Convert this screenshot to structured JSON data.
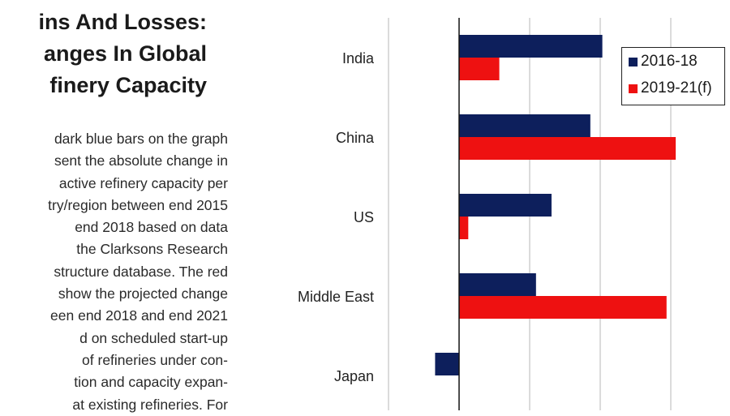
{
  "article": {
    "title_lines": [
      "ins And Losses:",
      "anges In Global",
      "finery Capacity"
    ],
    "body_lines": [
      "dark blue bars on the graph",
      "sent the absolute change in",
      "active refinery capacity per",
      "try/region between end 2015",
      "end 2018 based on data",
      "the Clarksons Research",
      "structure database. The red",
      "show the projected change",
      "een end 2018 and end 2021",
      "d on scheduled start-up",
      "of refineries under con-",
      "tion and capacity expan-",
      "at existing refineries. For"
    ]
  },
  "chart_data": {
    "type": "bar",
    "orientation": "horizontal",
    "categories": [
      "India",
      "China",
      "US",
      "Middle East",
      "Japan"
    ],
    "series": [
      {
        "name": "2016-18",
        "color": "#0d1f5c",
        "values": [
          2.03,
          1.86,
          1.31,
          1.09,
          -0.34
        ]
      },
      {
        "name": "2019-21(f)",
        "color": "#ee1111",
        "values": [
          0.57,
          3.07,
          0.13,
          2.94,
          null
        ]
      }
    ],
    "xlim": [
      -1,
      3.6
    ],
    "xgrid_step": 1,
    "grid": true,
    "tick_labels_visible": false,
    "legend_placement": "top-right"
  }
}
